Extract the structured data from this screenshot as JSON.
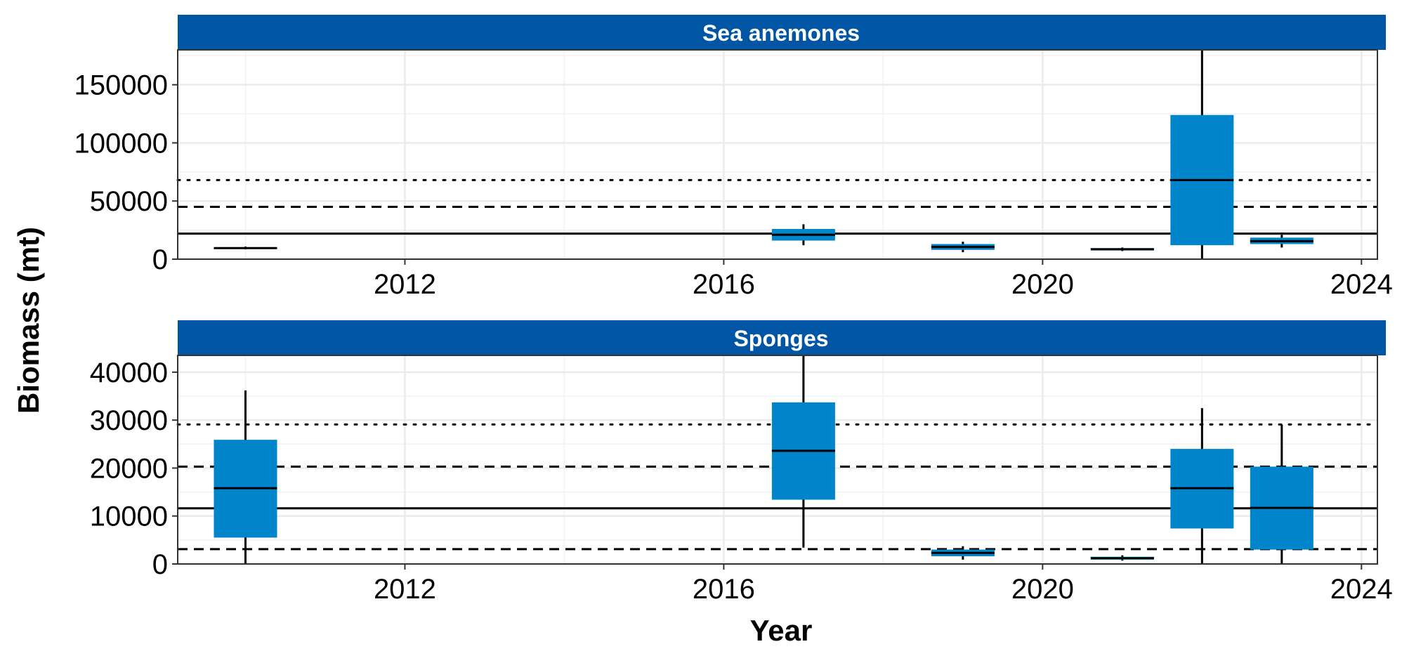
{
  "colors": {
    "strip": "#0055A5",
    "box": "#0085CA",
    "line": "#000000",
    "grid_major": "#EBEBEB",
    "grid_minor": "#F2F2F2"
  },
  "chart_data": [
    {
      "type": "box",
      "panel": "Sea anemones",
      "xlabel": "Year",
      "ylabel": "Biomass (mt)",
      "xlim": [
        2009.15,
        2024.2
      ],
      "ylim": [
        0,
        180000
      ],
      "x_ticks": [
        "2012",
        "2016",
        "2020",
        "2024"
      ],
      "y_ticks": [
        "0",
        "50000",
        "100000",
        "150000"
      ],
      "grid": true,
      "reference_lines": [
        {
          "y": 22000,
          "style": "solid"
        },
        {
          "y": 45000,
          "style": "dashed"
        },
        {
          "y": 68000,
          "style": "dotted"
        }
      ],
      "boxes": [
        {
          "year": 2010,
          "whisker_low": 8500,
          "q1": 8800,
          "median": 9500,
          "q3": 10200,
          "whisker_high": 10800
        },
        {
          "year": 2017,
          "whisker_low": 12000,
          "q1": 16000,
          "median": 21000,
          "q3": 26000,
          "whisker_high": 30000
        },
        {
          "year": 2019,
          "whisker_low": 6000,
          "q1": 8000,
          "median": 10500,
          "q3": 13000,
          "whisker_high": 15000
        },
        {
          "year": 2021,
          "whisker_low": 7000,
          "q1": 7500,
          "median": 8500,
          "q3": 9500,
          "whisker_high": 10000
        },
        {
          "year": 2022,
          "whisker_low": 0,
          "q1": 12000,
          "median": 68000,
          "q3": 124000,
          "whisker_high": 180000
        },
        {
          "year": 2023,
          "whisker_low": 10000,
          "q1": 13000,
          "median": 15500,
          "q3": 18500,
          "whisker_high": 21000
        }
      ]
    },
    {
      "type": "box",
      "panel": "Sponges",
      "xlabel": "Year",
      "ylabel": "Biomass (mt)",
      "xlim": [
        2009.15,
        2024.2
      ],
      "ylim": [
        0,
        43500
      ],
      "x_ticks": [
        "2012",
        "2016",
        "2020",
        "2024"
      ],
      "y_ticks": [
        "0",
        "10000",
        "20000",
        "30000",
        "40000"
      ],
      "grid": true,
      "reference_lines": [
        {
          "y": 3100,
          "style": "dashed"
        },
        {
          "y": 11600,
          "style": "solid"
        },
        {
          "y": 20300,
          "style": "dashed"
        },
        {
          "y": 29100,
          "style": "dotted"
        }
      ],
      "boxes": [
        {
          "year": 2010,
          "whisker_low": 0,
          "q1": 5500,
          "median": 15800,
          "q3": 25900,
          "whisker_high": 36200
        },
        {
          "year": 2017,
          "whisker_low": 3400,
          "q1": 13400,
          "median": 23600,
          "q3": 33700,
          "whisker_high": 43500
        },
        {
          "year": 2019,
          "whisker_low": 900,
          "q1": 1600,
          "median": 2300,
          "q3": 3000,
          "whisker_high": 3700
        },
        {
          "year": 2021,
          "whisker_low": 700,
          "q1": 900,
          "median": 1200,
          "q3": 1500,
          "whisker_high": 1800
        },
        {
          "year": 2022,
          "whisker_low": 0,
          "q1": 7400,
          "median": 15800,
          "q3": 24000,
          "whisker_high": 32500
        },
        {
          "year": 2023,
          "whisker_low": 0,
          "q1": 3000,
          "median": 11700,
          "q3": 20300,
          "whisker_high": 29100
        }
      ]
    }
  ]
}
